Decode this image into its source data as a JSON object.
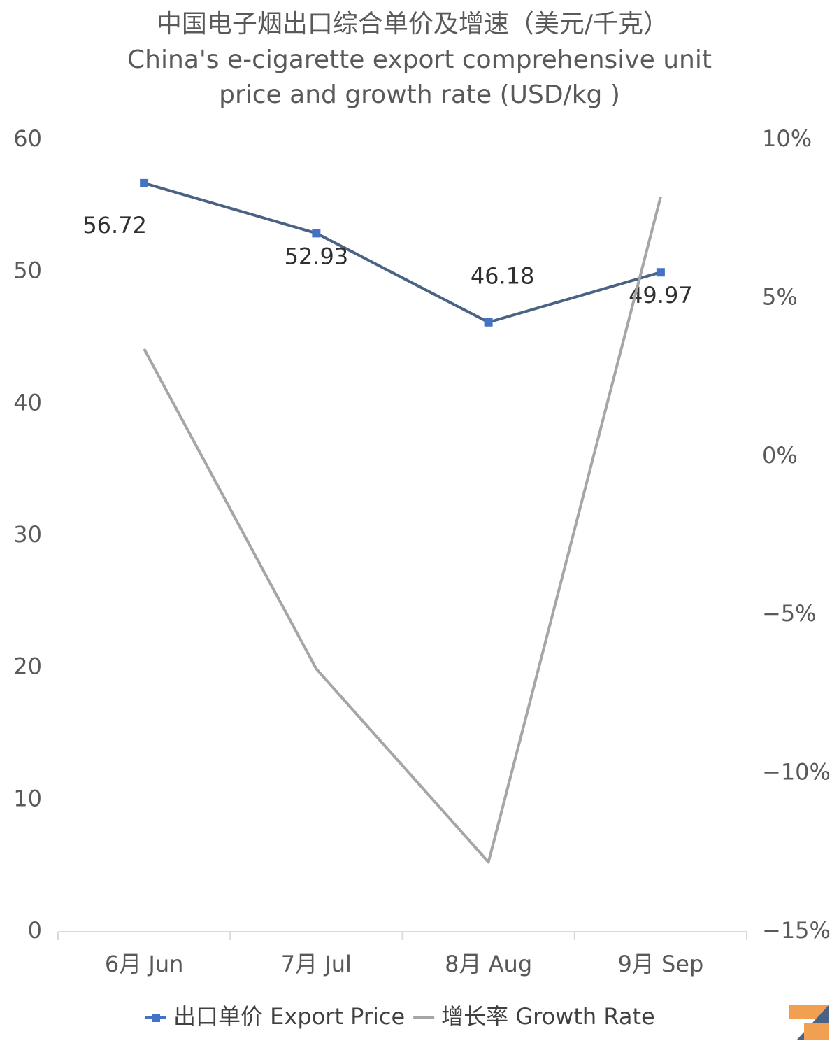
{
  "chart_data": {
    "type": "line",
    "title": "中国电子烟出口综合单价及增速（美元/千克）",
    "subtitle": [
      "China's e-cigarette export comprehensive unit",
      "price and growth rate (USD/kg )"
    ],
    "categories": [
      "6月 Jun",
      "7月 Jul",
      "8月 Aug",
      "9月 Sep"
    ],
    "series": [
      {
        "name": "出口单价 Export Price",
        "color": "#4a6385",
        "marker_color": "#4472c4",
        "values": [
          56.72,
          52.93,
          46.18,
          49.97
        ]
      },
      {
        "name": "增长率 Growth Rate",
        "color": "#a6a6a6",
        "axis": "y2",
        "values": [
          3.4,
          -6.7,
          -12.8,
          8.2
        ]
      }
    ],
    "ylim": [
      0,
      60
    ],
    "yticks": [
      0,
      10,
      20,
      30,
      40,
      50,
      60
    ],
    "y2lim": [
      -15,
      10
    ],
    "y2ticks": [
      {
        "value": -15,
        "label": "−15%"
      },
      {
        "value": -10,
        "label": "−10%"
      },
      {
        "value": -5,
        "label": "−5%"
      },
      {
        "value": 0,
        "label": "0%"
      },
      {
        "value": 5,
        "label": "5%"
      },
      {
        "value": 10,
        "label": "10%"
      }
    ],
    "legend": "bottom"
  }
}
